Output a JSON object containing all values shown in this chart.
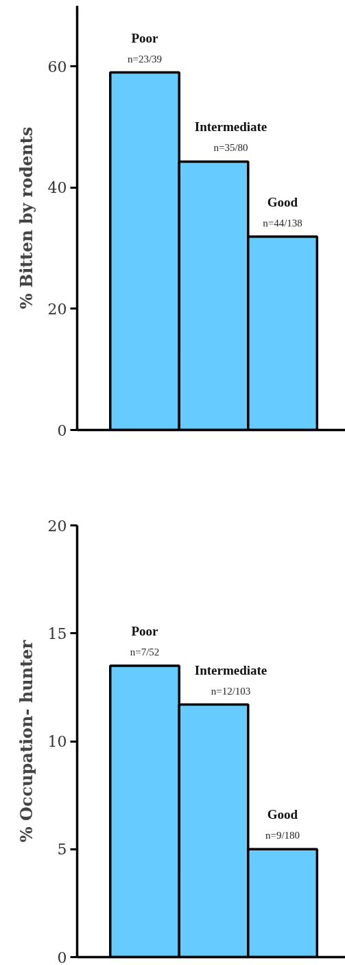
{
  "chart_data": [
    {
      "type": "bar",
      "ylabel": "% Bitten by rodents",
      "categories": [
        "Poor",
        "Intermediate",
        "Good"
      ],
      "values": [
        59,
        44.3,
        31.9
      ],
      "value_labels": [
        "n=23/39",
        "n=35/80",
        "n=44/138"
      ],
      "color": "#66ccff",
      "ylim": [
        0,
        70
      ],
      "yticks": [
        0,
        20,
        40,
        60
      ],
      "grid": false,
      "tick_labels": "y"
    },
    {
      "type": "bar",
      "ylabel": "% Occupation- hunter",
      "categories": [
        "Poor",
        "Intermediate",
        "Good"
      ],
      "values": [
        13.5,
        11.7,
        5.0
      ],
      "value_labels": [
        "n=7/52",
        "n=12/103",
        "n=9/180"
      ],
      "color": "#66ccff",
      "ylim": [
        0,
        20
      ],
      "yticks": [
        0,
        5,
        10,
        15,
        20
      ],
      "grid": false,
      "tick_labels": "y"
    }
  ]
}
